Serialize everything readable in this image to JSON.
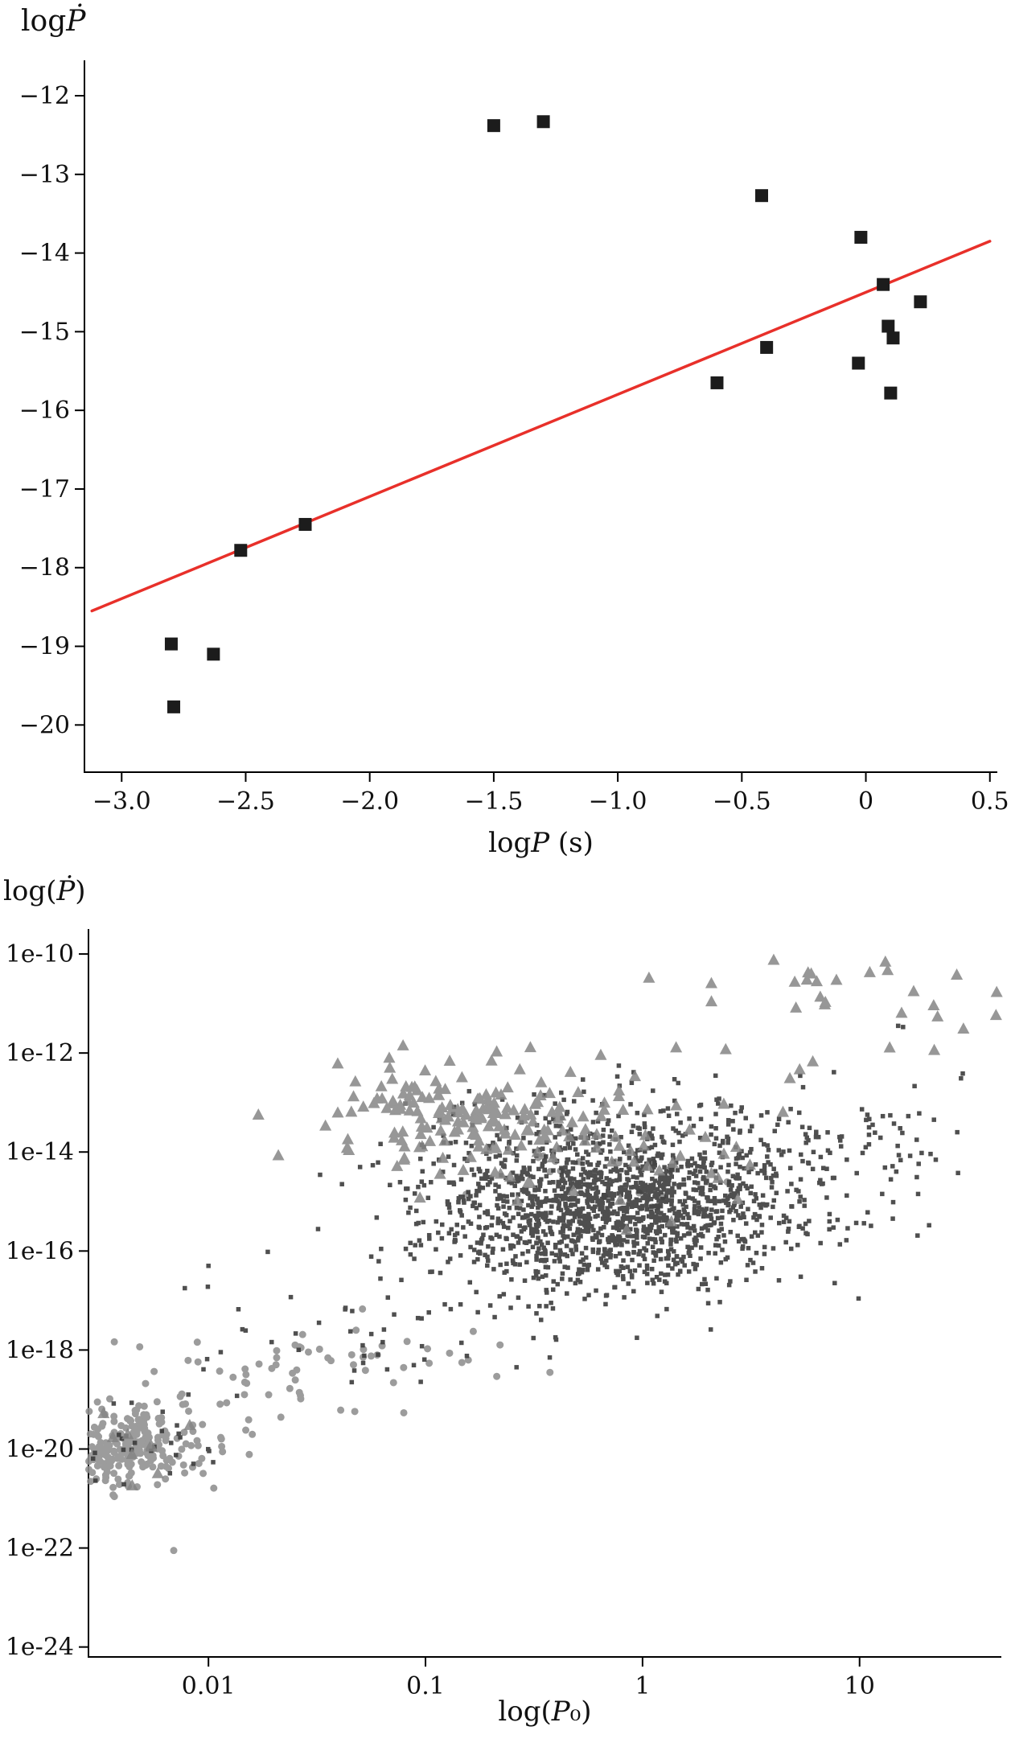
{
  "page": {
    "background": "#ffffff"
  },
  "chart_data": [
    {
      "type": "scatter",
      "title": "",
      "ylabel": "logṖ",
      "xlabel": "logP (s)",
      "ylabel_parts": {
        "prefix": "log",
        "var": "Ṗ",
        "suffix": ""
      },
      "xlabel_parts": {
        "prefix": "log",
        "var": "P",
        "suffix": " (s)"
      },
      "xscale": "linear",
      "yscale": "linear",
      "xlim": [
        -3.15,
        0.53
      ],
      "ylim": [
        -20.6,
        -11.55
      ],
      "xticks": [
        -3.0,
        -2.5,
        -2.0,
        -1.5,
        -1.0,
        -0.5,
        0,
        0.5
      ],
      "xtick_labels": [
        "−3.0",
        "−2.5",
        "−2.0",
        "−1.5",
        "−1.0",
        "−0.5",
        "0",
        "0.5"
      ],
      "yticks": [
        -12,
        -13,
        -14,
        -15,
        -16,
        -17,
        -18,
        -19,
        -20
      ],
      "ytick_labels": [
        "−12",
        "−13",
        "−14",
        "−15",
        "−16",
        "−17",
        "−18",
        "−19",
        "−20"
      ],
      "grid": false,
      "legend": null,
      "marker": {
        "shape": "square",
        "color": "#1c1c1c",
        "size": 16,
        "name": "black-squares"
      },
      "points": [
        [
          -1.5,
          -12.38
        ],
        [
          -1.3,
          -12.33
        ],
        [
          -0.42,
          -13.27
        ],
        [
          -0.02,
          -13.8
        ],
        [
          0.07,
          -14.4
        ],
        [
          0.22,
          -14.62
        ],
        [
          0.09,
          -14.93
        ],
        [
          0.11,
          -15.08
        ],
        [
          -0.4,
          -15.2
        ],
        [
          -0.03,
          -15.4
        ],
        [
          -0.6,
          -15.65
        ],
        [
          0.1,
          -15.78
        ],
        [
          -2.26,
          -17.45
        ],
        [
          -2.52,
          -17.78
        ],
        [
          -2.8,
          -18.97
        ],
        [
          -2.63,
          -19.1
        ],
        [
          -2.79,
          -19.77
        ]
      ],
      "fit_line": {
        "color": "#e8302a",
        "width": 3.5,
        "x1": -3.12,
        "y1": -18.55,
        "x2": 0.5,
        "y2": -13.85
      }
    },
    {
      "type": "scatter",
      "title": "",
      "ylabel": "log(Ṗ)",
      "xlabel": "log(P₀)",
      "ylabel_parts": {
        "prefix": "log(",
        "var": "Ṗ",
        "suffix": ")"
      },
      "xlabel_parts": {
        "prefix": "log(",
        "var": "P",
        "suffix": "₀)"
      },
      "xscale": "log",
      "yscale": "log",
      "xlim": [
        0.0028,
        45
      ],
      "ylim": [
        6.3e-25,
        3.2e-10
      ],
      "xticks": [
        0.01,
        0.1,
        1,
        10
      ],
      "xtick_labels": [
        "0.01",
        "0.1",
        "1",
        "10"
      ],
      "yticks": [
        1e-10,
        1e-12,
        1e-14,
        1e-16,
        1e-18,
        1e-20,
        1e-22,
        1e-24
      ],
      "ytick_labels": [
        "1e-10",
        "1e-12",
        "1e-14",
        "1e-16",
        "1e-18",
        "1e-20",
        "1e-22",
        "1e-24"
      ],
      "grid": false,
      "legend": null,
      "cluster_units": "log10",
      "series": [
        {
          "name": "gray-circles",
          "marker": "circle",
          "color": "#8f8f8f",
          "size": 9,
          "opacity": 0.88,
          "clusters": [
            {
              "cx": -2.42,
              "cy": -20.0,
              "sx": 0.15,
              "sy": 0.33,
              "n": 190
            },
            {
              "cx": -2.28,
              "cy": -19.75,
              "sx": 0.2,
              "sy": 0.42,
              "n": 90
            },
            {
              "cx": -1.6,
              "cy": -18.6,
              "sx": 0.36,
              "sy": 0.45,
              "n": 50
            },
            {
              "cx": -0.98,
              "cy": -18.15,
              "sx": 0.28,
              "sy": 0.4,
              "n": 14
            },
            {
              "cx": -0.1,
              "cy": -14.5,
              "sx": 0.25,
              "sy": 0.35,
              "n": 18
            }
          ],
          "outliers": [
            [
              -2.16,
              -22.05
            ],
            [
              -2.62,
              -21.3
            ],
            [
              -1.32,
              -17.6
            ]
          ]
        },
        {
          "name": "small-dark-dots",
          "marker": "dot",
          "color": "#3c3c3c",
          "size": 5.5,
          "opacity": 0.9,
          "clusters": [
            {
              "cx": -0.18,
              "cy": -15.2,
              "sx": 0.4,
              "sy": 0.78,
              "n": 1500
            },
            {
              "cx": 0.12,
              "cy": -13.7,
              "sx": 0.5,
              "sy": 0.55,
              "n": 170
            },
            {
              "cx": 0.82,
              "cy": -14.4,
              "sx": 0.35,
              "sy": 0.85,
              "n": 90
            },
            {
              "cx": -1.1,
              "cy": -17.3,
              "sx": 0.48,
              "sy": 0.7,
              "n": 65
            },
            {
              "cx": 1.18,
              "cy": -13.3,
              "sx": 0.28,
              "sy": 0.85,
              "n": 18
            },
            {
              "cx": -2.35,
              "cy": -19.9,
              "sx": 0.22,
              "sy": 0.4,
              "n": 30
            }
          ],
          "outliers": [
            [
              1.45,
              -13.6
            ],
            [
              -2.0,
              -16.3
            ]
          ]
        },
        {
          "name": "gray-triangles",
          "marker": "triangle",
          "color": "#858585",
          "size": 13,
          "opacity": 0.85,
          "clusters": [
            {
              "cx": -0.75,
              "cy": -13.35,
              "sx": 0.3,
              "sy": 0.45,
              "n": 125
            },
            {
              "cx": -1.05,
              "cy": -13.2,
              "sx": 0.22,
              "sy": 0.6,
              "n": 40
            },
            {
              "cx": -0.2,
              "cy": -13.9,
              "sx": 0.4,
              "sy": 0.7,
              "n": 40
            },
            {
              "cx": 0.95,
              "cy": -10.6,
              "sx": 0.33,
              "sy": 0.45,
              "n": 22
            },
            {
              "cx": 0.6,
              "cy": -12.1,
              "sx": 0.45,
              "sy": 0.6,
              "n": 16
            },
            {
              "cx": -2.42,
              "cy": -20.0,
              "sx": 0.15,
              "sy": 0.35,
              "n": 10
            }
          ],
          "outliers": [
            [
              -1.77,
              -13.25
            ]
          ]
        }
      ]
    }
  ]
}
